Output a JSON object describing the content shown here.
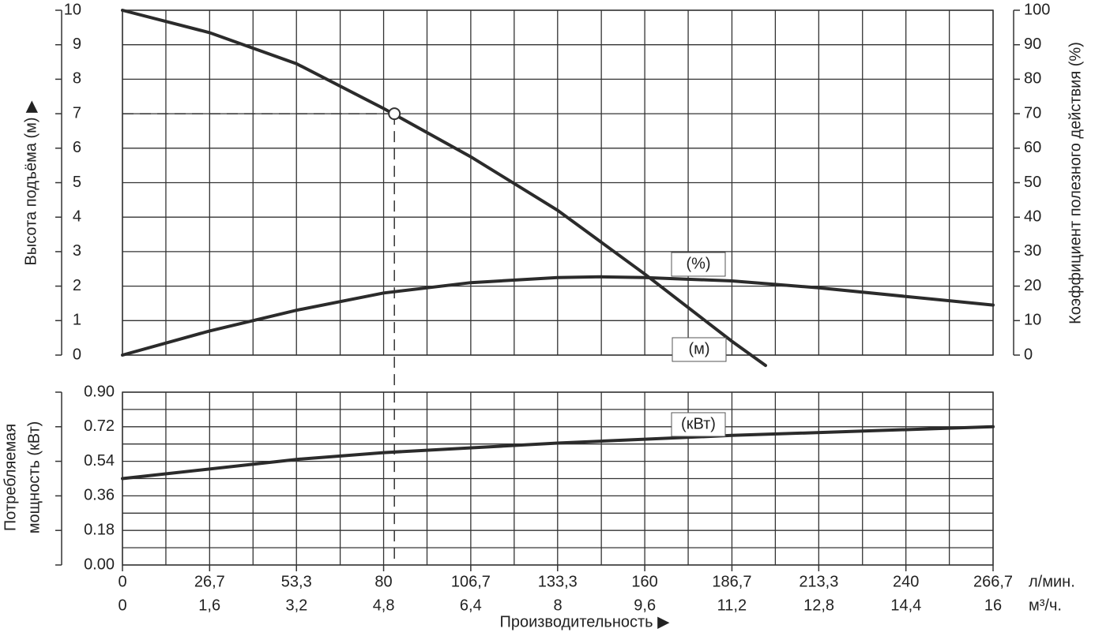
{
  "chart_data": [
    {
      "type": "line",
      "ylabel": "Высота подъёма (м) ▶",
      "y2label": "Коэффициент полезного действия (%)",
      "ylim": [
        0,
        10
      ],
      "yticks": [
        0,
        1,
        2,
        3,
        4,
        5,
        6,
        7,
        8,
        9,
        10
      ],
      "y2lim": [
        0,
        100
      ],
      "y2ticks": [
        0,
        10,
        20,
        30,
        40,
        50,
        60,
        70,
        80,
        90,
        100
      ],
      "grid": true,
      "series": [
        {
          "name": "(м)",
          "color": "#2b2b2b",
          "x": [
            0,
            26.7,
            53.3,
            80,
            106.7,
            133.3,
            160,
            186.7,
            197
          ],
          "values": [
            10,
            9.35,
            8.45,
            7.15,
            5.75,
            4.2,
            2.35,
            0.4,
            -0.3
          ]
        },
        {
          "name": "(%)",
          "color": "#2b2b2b",
          "axis": "y2",
          "x": [
            0,
            26.7,
            53.3,
            80,
            106.7,
            133.3,
            146.7,
            160,
            186.7,
            213.3,
            240,
            266.7
          ],
          "values": [
            0,
            7,
            13,
            18,
            21,
            22.5,
            22.7,
            22.5,
            21.5,
            19.5,
            17,
            14.5
          ]
        }
      ],
      "point": {
        "x": 83.3,
        "y": 7
      }
    },
    {
      "type": "line",
      "ylabel": [
        "Потребляемая",
        "мощность (кВт)"
      ],
      "xlabel": "Производительность ▶",
      "xunit": "л/мин.",
      "x2unit": "м³/ч.",
      "xlim": [
        0,
        266.7
      ],
      "xticks": [
        0,
        {
          "value": 26.7,
          "label": "26,7"
        },
        {
          "value": 53.3,
          "label": "53,3"
        },
        80,
        {
          "value": 106.7,
          "label": "106,7"
        },
        {
          "value": 133.3,
          "label": "133,3"
        },
        160,
        {
          "value": 186.7,
          "label": "186,7"
        },
        {
          "value": 213.3,
          "label": "213,3"
        },
        240,
        {
          "value": 266.7,
          "label": "266,7"
        }
      ],
      "xminor": [
        13.3,
        40,
        66.7,
        93.3,
        120,
        146.7,
        173.3,
        200,
        226.7,
        253.3
      ],
      "x2lim": [
        0,
        16
      ],
      "x2ticks": [
        0,
        {
          "value": 1.6,
          "label": "1,6"
        },
        {
          "value": 3.2,
          "label": "3,2"
        },
        {
          "value": 4.8,
          "label": "4,8"
        },
        {
          "value": 6.4,
          "label": "6,4"
        },
        8,
        {
          "value": 9.6,
          "label": "9,6"
        },
        {
          "value": 11.2,
          "label": "11,2"
        },
        {
          "value": 12.8,
          "label": "12,8"
        },
        {
          "value": 14.4,
          "label": "14,4"
        },
        16
      ],
      "ylim": [
        0,
        0.9
      ],
      "yticks": [
        {
          "value": 0,
          "label": "0.00"
        },
        {
          "value": 0.18,
          "label": "0.18"
        },
        {
          "value": 0.36,
          "label": "0.36"
        },
        {
          "value": 0.54,
          "label": "0.54"
        },
        {
          "value": 0.72,
          "label": "0.72"
        },
        {
          "value": 0.9,
          "label": "0.90"
        }
      ],
      "yminor": [
        0.09,
        0.27,
        0.45,
        0.63,
        0.81
      ],
      "grid": true,
      "series": [
        {
          "name": "(кВт)",
          "color": "#2b2b2b",
          "x": [
            0,
            53.3,
            80,
            133.3,
            186.7,
            266.7
          ],
          "values": [
            0.45,
            0.55,
            0.585,
            0.635,
            0.675,
            0.72
          ]
        }
      ]
    }
  ]
}
